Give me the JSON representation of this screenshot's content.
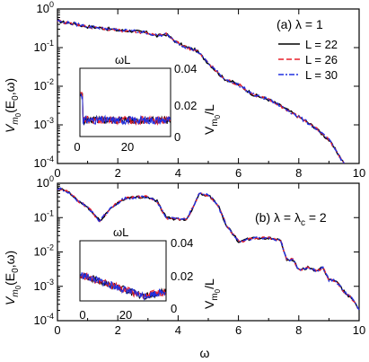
{
  "figure": {
    "panel_a_label": "(a) λ = 1",
    "panel_b_label": "(b) λ = λ",
    "panel_b_label_sub": "c",
    "panel_b_label_tail": " = 2",
    "x_label": "ω",
    "y_label_main": "V",
    "y_label_sub": "m",
    "y_label_subsub": "0",
    "y_label_args": "(E",
    "y_label_args_sub": "0",
    "y_label_args_tail": ",ω)",
    "inset_x_label": "ωL",
    "inset_y_label_main": "V",
    "inset_y_label_sub": "m",
    "inset_y_label_subsub": "0",
    "inset_y_label_tail": "/L"
  },
  "legend": [
    {
      "label": "L = 22",
      "color": "#000000",
      "dash": "solid"
    },
    {
      "label": "L = 26",
      "color": "#e8202a",
      "dash": "dash"
    },
    {
      "label": "L = 30",
      "color": "#2030e0",
      "dash": "dashdot"
    }
  ],
  "chart_data": [
    {
      "type": "line",
      "panel": "a",
      "title": "(a) λ = 1",
      "xlabel": "ω",
      "ylabel": "V_m0(E_0,ω)",
      "xlim": [
        0,
        10
      ],
      "ylim": [
        0.0001,
        1
      ],
      "yscale": "log",
      "xticks": [
        "0",
        "2",
        "4",
        "6",
        "8",
        "10"
      ],
      "yticks": [
        "10^-4",
        "10^-3",
        "10^-2",
        "10^-1",
        "10^0"
      ],
      "series_names": [
        "L = 22",
        "L = 26",
        "L = 30"
      ],
      "curve": {
        "x": [
          0,
          0.2,
          0.5,
          1.0,
          1.5,
          2.0,
          2.5,
          3.0,
          3.3,
          3.6,
          4.0,
          4.3,
          4.6,
          5.0,
          5.5,
          6.0,
          6.5,
          7.0,
          7.5,
          8.0,
          8.5,
          9.0,
          9.3,
          9.5
        ],
        "y": [
          0.5,
          0.45,
          0.42,
          0.35,
          0.32,
          0.28,
          0.27,
          0.24,
          0.2,
          0.22,
          0.13,
          0.1,
          0.085,
          0.04,
          0.016,
          0.011,
          0.006,
          0.0045,
          0.0028,
          0.0016,
          0.0009,
          0.0004,
          0.00018,
          0.0001
        ]
      },
      "inset": {
        "xlabel": "ωL",
        "ylabel": "V_m0/L",
        "xlim": [
          0,
          38
        ],
        "ylim": [
          0,
          0.05
        ],
        "xticks": [
          "0",
          "20"
        ],
        "yticks": [
          "0",
          "0.02",
          "0.04"
        ],
        "level": 0.012
      }
    },
    {
      "type": "line",
      "panel": "b",
      "title": "(b) λ = λc = 2",
      "xlabel": "ω",
      "ylabel": "V_m0(E_0,ω)",
      "xlim": [
        0,
        10
      ],
      "ylim": [
        0.0001,
        1
      ],
      "yscale": "log",
      "xticks": [
        "0",
        "2",
        "4",
        "6",
        "8",
        "10"
      ],
      "yticks": [
        "10^-4",
        "10^-3",
        "10^-2",
        "10^-1",
        "10^0"
      ],
      "series_names": [
        "L = 22",
        "L = 26",
        "L = 30"
      ],
      "curve": {
        "x": [
          0,
          0.3,
          0.7,
          1.0,
          1.4,
          1.8,
          2.2,
          2.7,
          3.0,
          3.3,
          3.6,
          4.0,
          4.3,
          4.7,
          5.0,
          5.3,
          5.6,
          6.0,
          6.5,
          7.0,
          7.4,
          7.6,
          7.8,
          8.0,
          8.3,
          8.6,
          8.8,
          9.0,
          9.2,
          9.5,
          9.8,
          10.0
        ],
        "y": [
          0.7,
          0.6,
          0.3,
          0.2,
          0.08,
          0.2,
          0.35,
          0.4,
          0.4,
          0.3,
          0.1,
          0.09,
          0.09,
          0.5,
          0.45,
          0.25,
          0.06,
          0.02,
          0.025,
          0.025,
          0.022,
          0.006,
          0.006,
          0.003,
          0.0035,
          0.0028,
          0.0035,
          0.0015,
          0.0015,
          0.0007,
          0.0004,
          0.00022
        ]
      },
      "inset": {
        "xlabel": "ωL",
        "ylabel": "V_m0/L",
        "xlim": [
          0,
          38
        ],
        "ylim": [
          0,
          0.05
        ],
        "xticks": [
          "0",
          "20"
        ],
        "yticks": [
          "0",
          "0.02",
          "0.04"
        ],
        "start": 0.022,
        "min": 0.004,
        "end": 0.008
      }
    }
  ]
}
